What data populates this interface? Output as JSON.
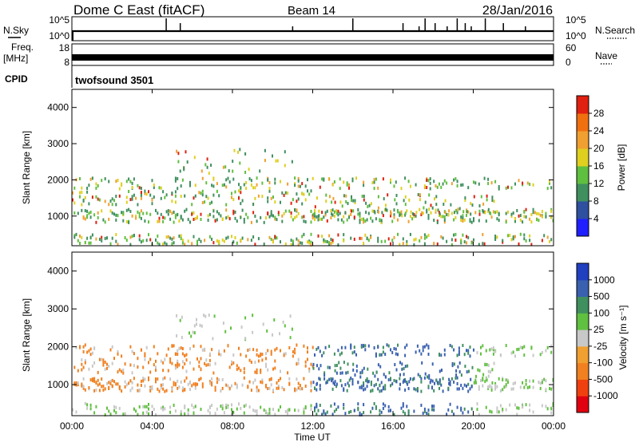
{
  "header": {
    "station": "Dome C East (fitACF)",
    "beam": "Beam 14",
    "date": "28/Jan/2016"
  },
  "labels": {
    "nsky": "N.Sky",
    "nsearch": "N.Search",
    "freq": "Freq.",
    "freq_unit": "[MHz]",
    "nave": "Nave",
    "cpid": "CPID",
    "cpid_value": "twofsound 3501",
    "slant_range": "Slant Range [km]",
    "time_axis": "Time UT",
    "power_colorbar": "Power [dB]",
    "velocity_colorbar": "Velocity [m s⁻¹]"
  },
  "noise_panel": {
    "left_ticks": [
      "10^5",
      "10^0"
    ],
    "right_ticks": [
      "10^5",
      "10^0"
    ],
    "spike_hours": [
      4.7,
      5.4,
      11.0,
      14.0,
      16.5,
      17.3,
      17.6,
      18.1,
      18.7,
      19.2,
      19.6,
      19.9,
      20.6,
      21.5,
      22.6
    ]
  },
  "freq_panel": {
    "left_ticks": [
      "18",
      "8"
    ],
    "right_ticks": [
      "60",
      "0"
    ]
  },
  "colors": {
    "power_scale": [
      "#1f1fff",
      "#2f4f9f",
      "#3f8f5f",
      "#5fbf3f",
      "#dfcf1f",
      "#f0a030",
      "#f07010",
      "#e02010"
    ],
    "velocity_scale": [
      "#e00010",
      "#f04010",
      "#f08020",
      "#f0a030",
      "#c8c8c8",
      "#60c040",
      "#3f8f5f",
      "#3a60b0",
      "#2040c0"
    ]
  },
  "chart_data": {
    "type": "heatmap",
    "xlabel": "Time UT",
    "ylabel": "Slant Range [km]",
    "x_ticks": [
      "00:00",
      "04:00",
      "08:00",
      "12:00",
      "16:00",
      "20:00",
      "00:00"
    ],
    "y_ticks": [
      1000,
      2000,
      3000,
      4000
    ],
    "xlim_hours": [
      0,
      24
    ],
    "ylim_km": [
      180,
      4500
    ],
    "panels": [
      {
        "name": "power",
        "colorbar_label": "Power [dB]",
        "colorbar_ticks": [
          4,
          8,
          12,
          16,
          20,
          24,
          28
        ],
        "scale_range": [
          0,
          30
        ]
      },
      {
        "name": "velocity",
        "colorbar_label": "Velocity [m s⁻¹]",
        "colorbar_ticks": [
          "1000",
          "500",
          "100",
          "25",
          "-25",
          "-100",
          "-500",
          "-1000"
        ]
      }
    ]
  }
}
